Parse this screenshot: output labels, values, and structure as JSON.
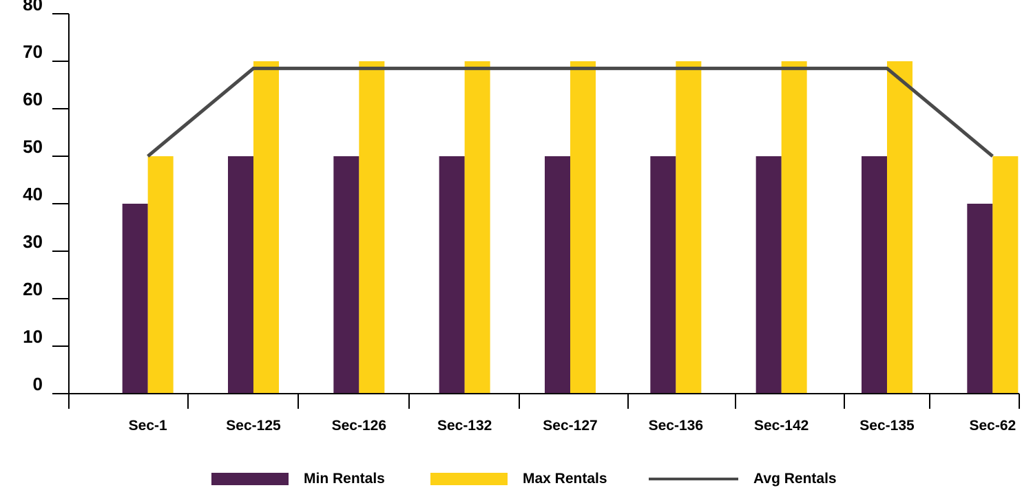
{
  "chart_data": {
    "type": "bar",
    "title": "",
    "categories": [
      "Sec-1",
      "Sec-125",
      "Sec-126",
      "Sec-132",
      "Sec-127",
      "Sec-136",
      "Sec-142",
      "Sec-135",
      "Sec-62"
    ],
    "series": [
      {
        "name": "Min Rentals",
        "kind": "bar",
        "color": "#4e2150",
        "values": [
          40,
          50,
          50,
          50,
          50,
          50,
          50,
          50,
          40
        ]
      },
      {
        "name": "Max Rentals",
        "kind": "bar",
        "color": "#fdd116",
        "values": [
          50,
          70,
          70,
          70,
          70,
          70,
          70,
          70,
          50
        ]
      },
      {
        "name": "Avg Rentals",
        "kind": "line",
        "color": "#4a4a4a",
        "values": [
          50,
          68.5,
          68.5,
          68.5,
          68.5,
          68.5,
          68.5,
          68.5,
          50
        ]
      }
    ],
    "ylim": [
      0,
      80
    ],
    "yticks": [
      "0",
      "10",
      "20",
      "30",
      "40",
      "50",
      "60",
      "70",
      "80"
    ],
    "xlabel": "",
    "ylabel": "",
    "grid": false,
    "legend_position": "bottom"
  }
}
